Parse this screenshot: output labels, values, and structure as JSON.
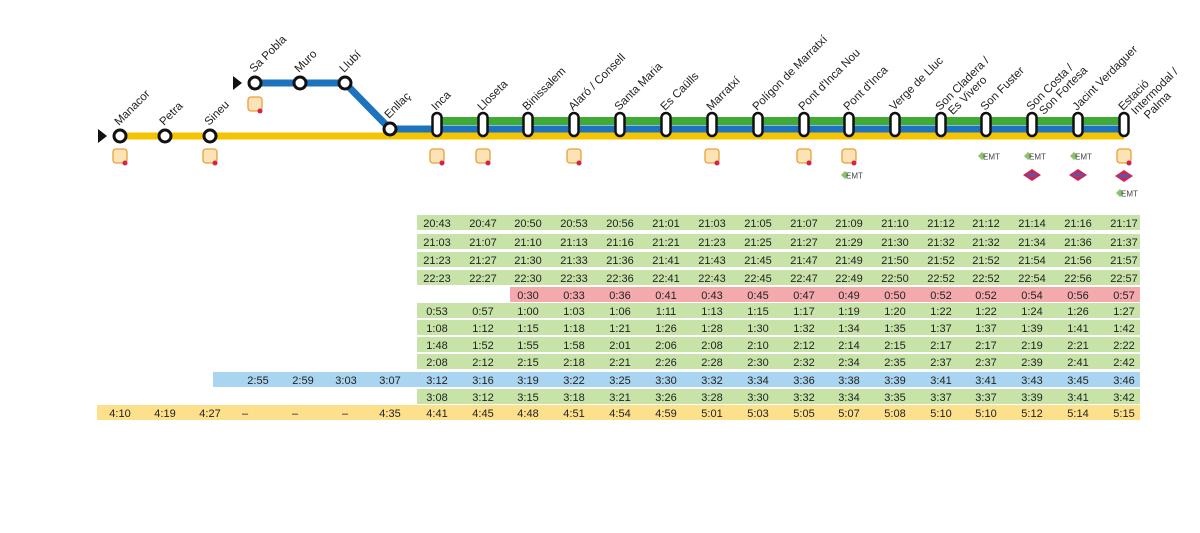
{
  "colors": {
    "yellow_line": "#f5c400",
    "blue_line": "#1e73be",
    "green_line": "#3faa35",
    "row_green": "#c8e3a8",
    "row_red": "#f4a9ad",
    "row_blue": "#a9d5f0",
    "row_yellow": "#fde08c"
  },
  "stations": [
    {
      "lines": [
        "Manacor"
      ],
      "icons": [
        "tib-bus-icon"
      ],
      "start": true
    },
    {
      "lines": [
        "Petra"
      ],
      "icons": []
    },
    {
      "lines": [
        "Sineu"
      ],
      "icons": [
        "tib-bus-icon"
      ]
    },
    {
      "lines": [
        "Sa Pobla"
      ],
      "icons": [
        "tib-bus-icon"
      ],
      "start": true,
      "branch": true
    },
    {
      "lines": [
        "Muro"
      ],
      "icons": [],
      "branch": true
    },
    {
      "lines": [
        "Llubí"
      ],
      "icons": [],
      "branch": true
    },
    {
      "lines": [
        "Enllaç"
      ],
      "icons": []
    },
    {
      "lines": [
        "Inca"
      ],
      "icons": [
        "tib-bus-icon"
      ]
    },
    {
      "lines": [
        "Lloseta"
      ],
      "icons": [
        "tib-bus-icon"
      ]
    },
    {
      "lines": [
        "Binissalem"
      ],
      "icons": []
    },
    {
      "lines": [
        "Alaró / Consell"
      ],
      "icons": [
        "tib-bus-icon"
      ]
    },
    {
      "lines": [
        "Santa Maria"
      ],
      "icons": []
    },
    {
      "lines": [
        "Es Caülls"
      ],
      "icons": []
    },
    {
      "lines": [
        "Marratxí"
      ],
      "icons": [
        "tib-bus-icon"
      ]
    },
    {
      "lines": [
        "Polígon de Marratxí"
      ],
      "icons": []
    },
    {
      "lines": [
        "Pont d'Inca Nou"
      ],
      "icons": [
        "tib-bus-icon"
      ]
    },
    {
      "lines": [
        "Pont d'Inca"
      ],
      "icons": [
        "tib-bus-icon",
        "emt-icon"
      ]
    },
    {
      "lines": [
        "Verge de Lluc"
      ],
      "icons": []
    },
    {
      "lines": [
        "Son Cladera /",
        "Es Vivero"
      ],
      "icons": []
    },
    {
      "lines": [
        "Son Fuster"
      ],
      "icons": [
        "emt-icon"
      ]
    },
    {
      "lines": [
        "Son Costa /",
        "Son Fortesa"
      ],
      "icons": [
        "emt-icon",
        "metro-icon"
      ]
    },
    {
      "lines": [
        "Jacint Verdaguer"
      ],
      "icons": [
        "emt-icon",
        "metro-icon"
      ]
    },
    {
      "lines": [
        "Estació",
        "Intermodal /",
        "Palma"
      ],
      "icons": [
        "tib-bus-icon",
        "metro-icon",
        "emt-icon"
      ]
    }
  ],
  "emt_label": "EMT",
  "timetable": [
    {
      "color": "green",
      "times": [
        "",
        "",
        "",
        "",
        "",
        "",
        "",
        "20:43",
        "20:47",
        "20:50",
        "20:53",
        "20:56",
        "21:01",
        "21:03",
        "21:05",
        "21:07",
        "21:09",
        "21:10",
        "21:12",
        "21:12",
        "21:14",
        "21:16",
        "21:17"
      ]
    },
    {
      "color": "green",
      "times": [
        "",
        "",
        "",
        "",
        "",
        "",
        "",
        "21:03",
        "21:07",
        "21:10",
        "21:13",
        "21:16",
        "21:21",
        "21:23",
        "21:25",
        "21:27",
        "21:29",
        "21:30",
        "21:32",
        "21:32",
        "21:34",
        "21:36",
        "21:37"
      ]
    },
    {
      "color": "green",
      "times": [
        "",
        "",
        "",
        "",
        "",
        "",
        "",
        "21:23",
        "21:27",
        "21:30",
        "21:33",
        "21:36",
        "21:41",
        "21:43",
        "21:45",
        "21:47",
        "21:49",
        "21:50",
        "21:52",
        "21:52",
        "21:54",
        "21:56",
        "21:57"
      ]
    },
    {
      "color": "green",
      "times": [
        "",
        "",
        "",
        "",
        "",
        "",
        "",
        "22:23",
        "22:27",
        "22:30",
        "22:33",
        "22:36",
        "22:41",
        "22:43",
        "22:45",
        "22:47",
        "22:49",
        "22:50",
        "22:52",
        "22:52",
        "22:54",
        "22:56",
        "22:57"
      ]
    },
    {
      "color": "red",
      "times": [
        "",
        "",
        "",
        "",
        "",
        "",
        "",
        "",
        "",
        "0:30",
        "0:33",
        "0:36",
        "0:41",
        "0:43",
        "0:45",
        "0:47",
        "0:49",
        "0:50",
        "0:52",
        "0:52",
        "0:54",
        "0:56",
        "0:57"
      ]
    },
    {
      "color": "green",
      "times": [
        "",
        "",
        "",
        "",
        "",
        "",
        "",
        "0:53",
        "0:57",
        "1:00",
        "1:03",
        "1:06",
        "1:11",
        "1:13",
        "1:15",
        "1:17",
        "1:19",
        "1:20",
        "1:22",
        "1:22",
        "1:24",
        "1:26",
        "1:27"
      ]
    },
    {
      "color": "green",
      "times": [
        "",
        "",
        "",
        "",
        "",
        "",
        "",
        "1:08",
        "1:12",
        "1:15",
        "1:18",
        "1:21",
        "1:26",
        "1:28",
        "1:30",
        "1:32",
        "1:34",
        "1:35",
        "1:37",
        "1:37",
        "1:39",
        "1:41",
        "1:42"
      ]
    },
    {
      "color": "green",
      "times": [
        "",
        "",
        "",
        "",
        "",
        "",
        "",
        "1:48",
        "1:52",
        "1:55",
        "1:58",
        "2:01",
        "2:06",
        "2:08",
        "2:10",
        "2:12",
        "2:14",
        "2:15",
        "2:17",
        "2:17",
        "2:19",
        "2:21",
        "2:22"
      ]
    },
    {
      "color": "green",
      "times": [
        "",
        "",
        "",
        "",
        "",
        "",
        "",
        "2:08",
        "2:12",
        "2:15",
        "2:18",
        "2:21",
        "2:26",
        "2:28",
        "2:30",
        "2:32",
        "2:34",
        "2:35",
        "2:37",
        "2:37",
        "2:39",
        "2:41",
        "2:42"
      ]
    },
    {
      "color": "blue",
      "times": [
        "",
        "",
        "",
        "2:55",
        "2:59",
        "3:03",
        "3:07",
        "3:12",
        "3:16",
        "3:19",
        "3:22",
        "3:25",
        "3:30",
        "3:32",
        "3:34",
        "3:36",
        "3:38",
        "3:39",
        "3:41",
        "3:41",
        "3:43",
        "3:45",
        "3:46"
      ]
    },
    {
      "color": "green",
      "times": [
        "",
        "",
        "",
        "",
        "",
        "",
        "",
        "3:08",
        "3:12",
        "3:15",
        "3:18",
        "3:21",
        "3:26",
        "3:28",
        "3:30",
        "3:32",
        "3:34",
        "3:35",
        "3:37",
        "3:37",
        "3:39",
        "3:41",
        "3:42"
      ]
    },
    {
      "color": "yellow",
      "times": [
        "4:10",
        "4:19",
        "4:27",
        "–",
        "–",
        "–",
        "4:35",
        "4:41",
        "4:45",
        "4:48",
        "4:51",
        "4:54",
        "4:59",
        "5:01",
        "5:03",
        "5:05",
        "5:07",
        "5:08",
        "5:10",
        "5:10",
        "5:12",
        "5:14",
        "5:15"
      ]
    }
  ]
}
